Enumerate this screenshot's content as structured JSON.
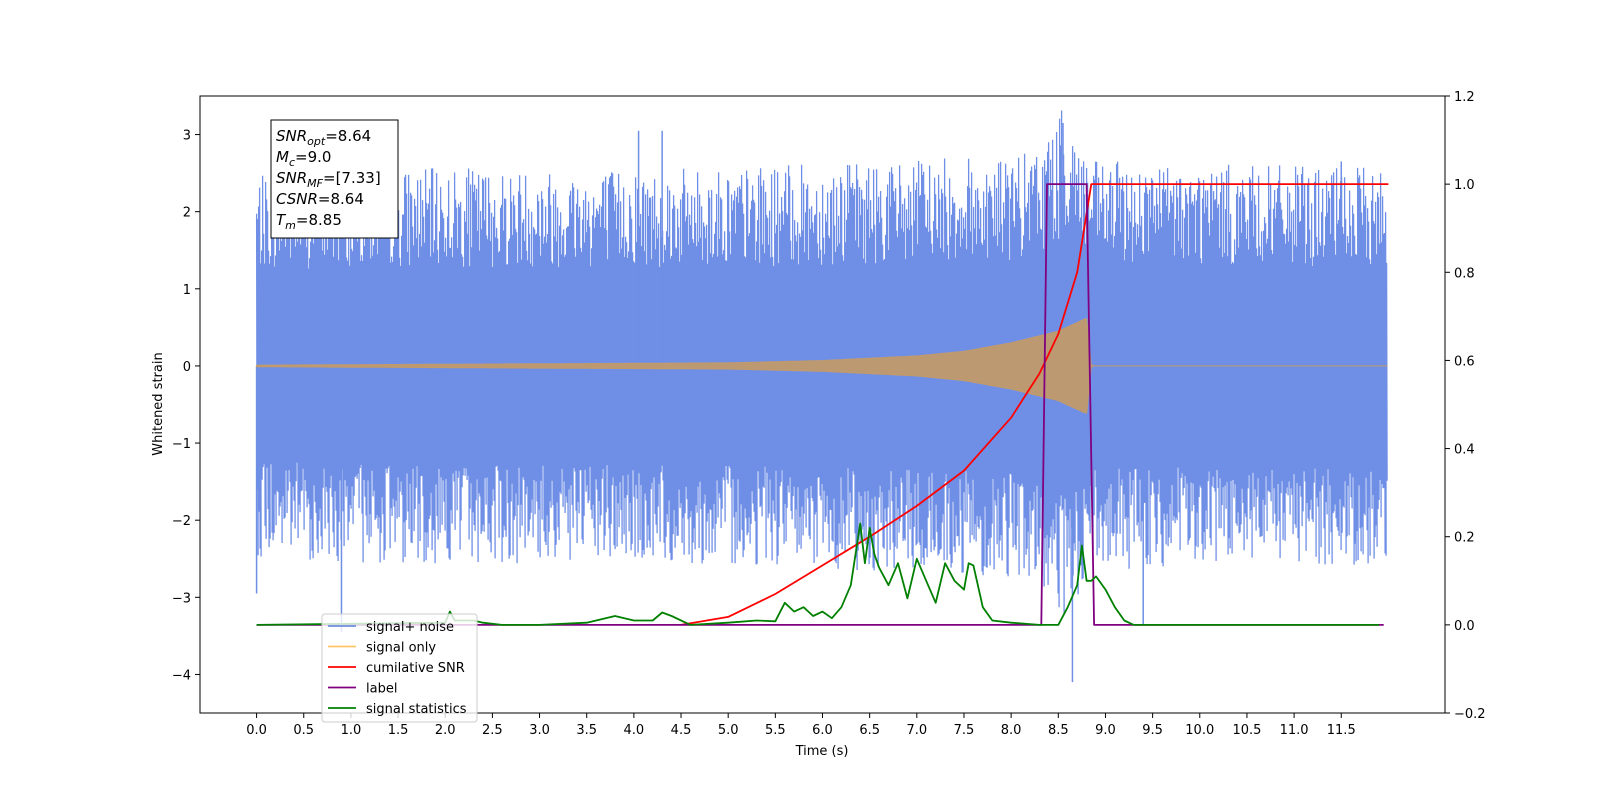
{
  "chart_data": {
    "type": "line",
    "title": "",
    "xlabel": "Time (s)",
    "ylabel": "Whitened strain",
    "xlim": [
      -0.6,
      12.6
    ],
    "ylim": [
      -4.5,
      3.5
    ],
    "y2lim": [
      -0.2,
      1.2
    ],
    "x_ticks": [
      0.0,
      0.5,
      1.0,
      1.5,
      2.0,
      2.5,
      3.0,
      3.5,
      4.0,
      4.5,
      5.0,
      5.5,
      6.0,
      6.5,
      7.0,
      7.5,
      8.0,
      8.5,
      9.0,
      9.5,
      10.0,
      10.5,
      11.0,
      11.5
    ],
    "x_tick_labels": [
      "0.0",
      "0.5",
      "1.0",
      "1.5",
      "2.0",
      "2.5",
      "3.0",
      "3.5",
      "4.0",
      "4.5",
      "5.0",
      "5.5",
      "6.0",
      "6.5",
      "7.0",
      "7.5",
      "8.0",
      "8.5",
      "9.0",
      "9.5",
      "10.0",
      "10.5",
      "11.0",
      "11.5"
    ],
    "y_ticks": [
      3,
      2,
      1,
      0,
      -1,
      -2,
      -3,
      -4
    ],
    "y_tick_labels": [
      "3",
      "2",
      "1",
      "0",
      "−1",
      "−2",
      "−3",
      "−4"
    ],
    "y2_ticks": [
      1.2,
      1.0,
      0.8,
      0.6,
      0.4,
      0.2,
      0.0,
      -0.2
    ],
    "y2_tick_labels": [
      "1.2",
      "1.0",
      "0.8",
      "0.6",
      "0.4",
      "0.2",
      "0.0",
      "−0.2"
    ],
    "grid": false,
    "legend_position": "lower-left",
    "legend": [
      {
        "label": "signal+ noise",
        "color": "#6f8fe6"
      },
      {
        "label": "signal only",
        "color": "#ffc566"
      },
      {
        "label": "cumilative SNR",
        "color": "#ff0000"
      },
      {
        "label": "label",
        "color": "#800080"
      },
      {
        "label": "signal statistics",
        "color": "#008000"
      }
    ],
    "annotation": [
      {
        "base": "SNR",
        "sub": "opt",
        "value": "=8.64"
      },
      {
        "base": "M",
        "sub": "c",
        "value": "=9.0"
      },
      {
        "base": "SNR",
        "sub": "MF",
        "value": "=[7.33]"
      },
      {
        "base": "CSNR",
        "sub": "",
        "value": "=8.64"
      },
      {
        "base": "T",
        "sub": "m",
        "value": "=8.85"
      }
    ],
    "series": [
      {
        "name": "signal+ noise",
        "axis": "left",
        "color": "#6f8fe6",
        "x_range": [
          0.0,
          11.99
        ],
        "envelope": [
          [
            0.0,
            1.3
          ],
          [
            1.0,
            1.35
          ],
          [
            5.0,
            1.35
          ],
          [
            8.2,
            1.45
          ],
          [
            8.6,
            1.8
          ],
          [
            8.85,
            1.4
          ],
          [
            12.0,
            1.35
          ]
        ],
        "spikes": [
          [
            0.0,
            -2.95
          ],
          [
            0.9,
            -3.45
          ],
          [
            4.05,
            3.05
          ],
          [
            4.3,
            3.05
          ],
          [
            8.55,
            3.15
          ],
          [
            8.65,
            -4.1
          ],
          [
            9.4,
            -3.35
          ],
          [
            11.5,
            2.65
          ]
        ]
      },
      {
        "name": "signal only",
        "axis": "left",
        "color": "#c19a6b",
        "x_range": [
          0.0,
          11.99
        ],
        "amplitude": [
          [
            0.0,
            0.01
          ],
          [
            5.0,
            0.04
          ],
          [
            6.0,
            0.07
          ],
          [
            7.0,
            0.13
          ],
          [
            7.5,
            0.19
          ],
          [
            8.0,
            0.3
          ],
          [
            8.5,
            0.45
          ],
          [
            8.8,
            0.62
          ],
          [
            8.85,
            0.0
          ],
          [
            12.0,
            0.0
          ]
        ]
      },
      {
        "name": "cumilative SNR",
        "axis": "right",
        "color": "#ff0000",
        "x": [
          4.5,
          5.0,
          5.5,
          6.0,
          6.5,
          7.0,
          7.5,
          8.0,
          8.3,
          8.5,
          8.7,
          8.85,
          8.86,
          12.0
        ],
        "y": [
          0.0,
          0.018,
          0.07,
          0.135,
          0.2,
          0.27,
          0.35,
          0.47,
          0.57,
          0.66,
          0.8,
          1.0,
          1.0,
          1.0
        ]
      },
      {
        "name": "label",
        "axis": "right",
        "color": "#800080",
        "x": [
          0.0,
          8.32,
          8.38,
          8.8,
          8.88,
          11.95
        ],
        "y": [
          0.0,
          0.0,
          1.0,
          1.0,
          0.0,
          0.0
        ]
      },
      {
        "name": "signal statistics",
        "axis": "right",
        "color": "#008000",
        "x": [
          0.0,
          2.0,
          2.05,
          2.1,
          2.3,
          2.4,
          2.6,
          3.0,
          3.5,
          3.8,
          4.0,
          4.2,
          4.3,
          4.4,
          4.6,
          5.0,
          5.3,
          5.5,
          5.6,
          5.7,
          5.8,
          5.9,
          6.0,
          6.1,
          6.2,
          6.3,
          6.4,
          6.45,
          6.5,
          6.55,
          6.6,
          6.7,
          6.8,
          6.9,
          7.0,
          7.1,
          7.2,
          7.3,
          7.4,
          7.5,
          7.55,
          7.6,
          7.7,
          7.8,
          8.0,
          8.3,
          8.5,
          8.6,
          8.7,
          8.75,
          8.8,
          8.85,
          8.9,
          9.0,
          9.1,
          9.2,
          9.3,
          9.5,
          11.9
        ],
        "y": [
          0.0,
          0.005,
          0.03,
          0.01,
          0.01,
          0.005,
          0.0,
          0.0,
          0.005,
          0.02,
          0.01,
          0.01,
          0.028,
          0.02,
          0.0,
          0.005,
          0.01,
          0.008,
          0.05,
          0.03,
          0.04,
          0.02,
          0.03,
          0.015,
          0.04,
          0.09,
          0.23,
          0.14,
          0.22,
          0.16,
          0.13,
          0.09,
          0.14,
          0.06,
          0.15,
          0.1,
          0.05,
          0.14,
          0.1,
          0.08,
          0.14,
          0.135,
          0.04,
          0.01,
          0.005,
          0.0,
          0.0,
          0.04,
          0.09,
          0.18,
          0.1,
          0.1,
          0.11,
          0.08,
          0.04,
          0.01,
          0.0,
          0.0,
          0.0
        ]
      }
    ]
  }
}
